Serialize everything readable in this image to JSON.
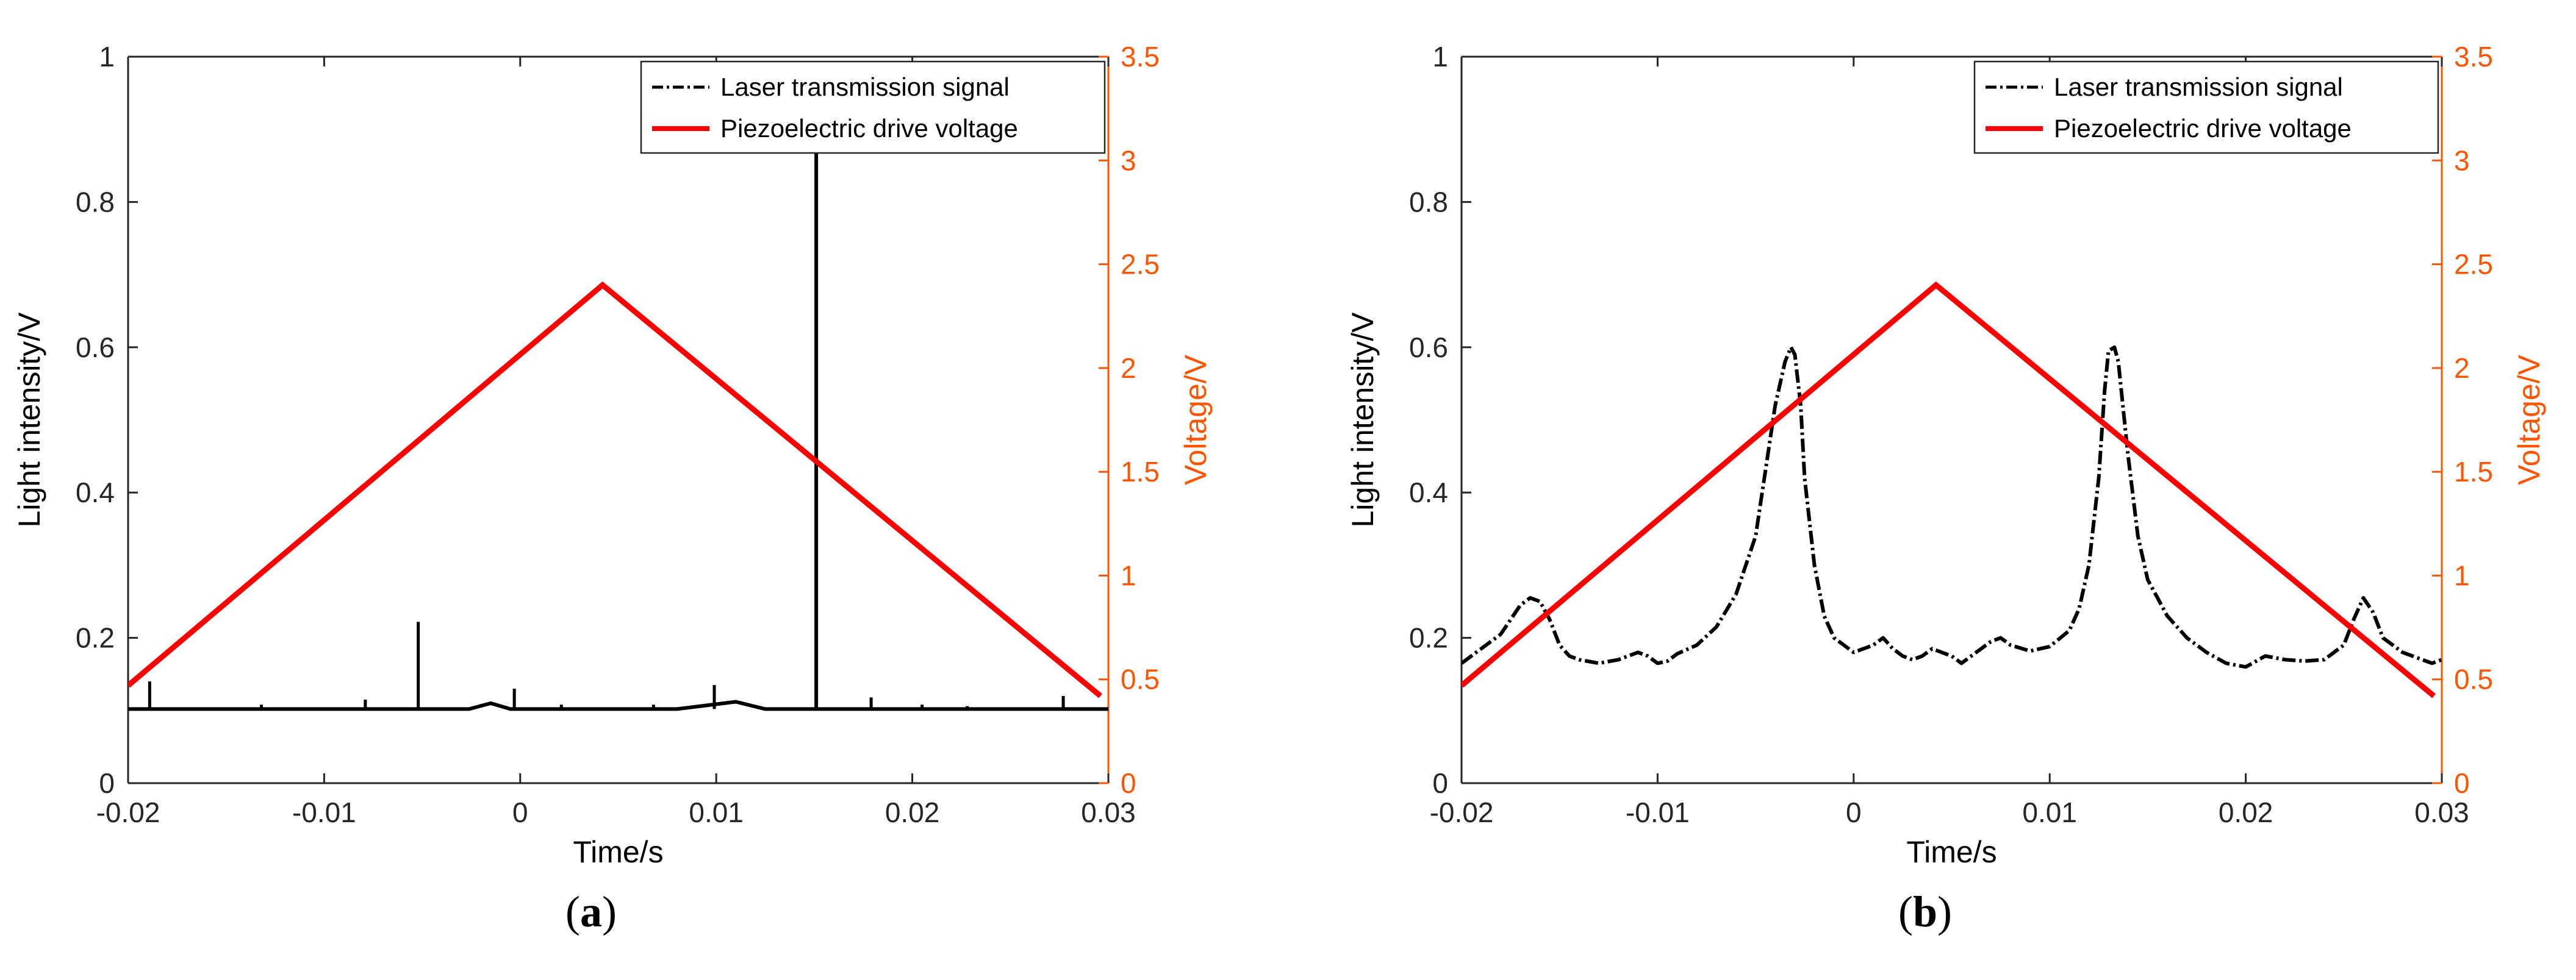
{
  "chart_data": [
    {
      "type": "line",
      "panel_label": "a",
      "xlabel": "Time/s",
      "ylabel": "Light intensity/V",
      "ylabel_right": "Voltage/V",
      "xlim": [
        -0.02,
        0.03
      ],
      "ylim": [
        0,
        1
      ],
      "ylim_right": [
        0,
        3.5
      ],
      "xticks": [
        "-0.02",
        "-0.01",
        "0",
        "0.01",
        "0.02",
        "0.03"
      ],
      "yticks": [
        "0",
        "0.2",
        "0.4",
        "0.6",
        "0.8",
        "1"
      ],
      "yticks_right": [
        "0",
        "0.5",
        "1",
        "1.5",
        "2",
        "2.5",
        "3",
        "3.5"
      ],
      "legend_position": "top-right",
      "grid": false,
      "colors": {
        "signal": "#000000",
        "voltage": "#ff0000",
        "right_axis": "#ff5500"
      },
      "series": [
        {
          "name": "Laser transmission signal",
          "axis": "left",
          "style": "dash-dot",
          "baseline": 0.102,
          "x": [
            -0.02,
            -0.0026,
            -0.0015,
            -0.0005,
            0.008,
            0.011,
            0.0125,
            0.03
          ],
          "y": [
            0.102,
            0.102,
            0.11,
            0.102,
            0.102,
            0.112,
            0.102,
            0.102
          ],
          "spikes": [
            {
              "x": -0.0189,
              "y": 0.14
            },
            {
              "x": -0.0132,
              "y": 0.108
            },
            {
              "x": -0.0079,
              "y": 0.115
            },
            {
              "x": -0.0052,
              "y": 0.222
            },
            {
              "x": -0.0003,
              "y": 0.13
            },
            {
              "x": 0.0021,
              "y": 0.108
            },
            {
              "x": 0.0068,
              "y": 0.108
            },
            {
              "x": 0.0099,
              "y": 0.135
            },
            {
              "x": 0.0151,
              "y": 0.97
            },
            {
              "x": 0.0179,
              "y": 0.118
            },
            {
              "x": 0.0205,
              "y": 0.108
            },
            {
              "x": 0.0228,
              "y": 0.106
            },
            {
              "x": 0.0277,
              "y": 0.12
            }
          ]
        },
        {
          "name": "Piezoelectric drive voltage",
          "axis": "right",
          "style": "solid",
          "x": [
            -0.02,
            0.0042,
            0.0296
          ],
          "y": [
            0.47,
            2.4,
            0.42
          ]
        }
      ]
    },
    {
      "type": "line",
      "panel_label": "b",
      "xlabel": "Time/s",
      "ylabel": "Light intensity/V",
      "ylabel_right": "Voltage/V",
      "xlim": [
        -0.02,
        0.03
      ],
      "ylim": [
        0,
        1
      ],
      "ylim_right": [
        0,
        3.5
      ],
      "xticks": [
        "-0.02",
        "-0.01",
        "0",
        "0.01",
        "0.02",
        "0.03"
      ],
      "yticks": [
        "0",
        "0.2",
        "0.4",
        "0.6",
        "0.8",
        "1"
      ],
      "yticks_right": [
        "0",
        "0.5",
        "1",
        "1.5",
        "2",
        "2.5",
        "3",
        "3.5"
      ],
      "legend_position": "top-right",
      "grid": false,
      "colors": {
        "signal": "#000000",
        "voltage": "#ff0000",
        "right_axis": "#ff5500"
      },
      "series": [
        {
          "name": "Laser transmission signal",
          "axis": "left",
          "style": "dash-dot",
          "x": [
            -0.02,
            -0.019,
            -0.018,
            -0.017,
            -0.0165,
            -0.016,
            -0.0155,
            -0.015,
            -0.0145,
            -0.014,
            -0.013,
            -0.012,
            -0.011,
            -0.0105,
            -0.01,
            -0.0095,
            -0.009,
            -0.008,
            -0.007,
            -0.006,
            -0.0055,
            -0.005,
            -0.0045,
            -0.004,
            -0.0035,
            -0.0032,
            -0.003,
            -0.0027,
            -0.0025,
            -0.002,
            -0.0015,
            -0.001,
            0,
            0.001,
            0.0015,
            0.002,
            0.0025,
            0.003,
            0.0035,
            0.004,
            0.0045,
            0.005,
            0.0055,
            0.006,
            0.007,
            0.0075,
            0.008,
            0.009,
            0.01,
            0.011,
            0.0115,
            0.012,
            0.0125,
            0.0128,
            0.013,
            0.0133,
            0.0135,
            0.014,
            0.0145,
            0.015,
            0.016,
            0.0165,
            0.017,
            0.018,
            0.019,
            0.02,
            0.021,
            0.022,
            0.023,
            0.024,
            0.025,
            0.0255,
            0.026,
            0.0265,
            0.027,
            0.028,
            0.029,
            0.0295,
            0.03
          ],
          "y": [
            0.165,
            0.185,
            0.205,
            0.245,
            0.255,
            0.25,
            0.225,
            0.19,
            0.175,
            0.17,
            0.165,
            0.17,
            0.18,
            0.175,
            0.165,
            0.168,
            0.178,
            0.19,
            0.215,
            0.26,
            0.3,
            0.34,
            0.43,
            0.52,
            0.58,
            0.6,
            0.59,
            0.52,
            0.42,
            0.3,
            0.23,
            0.2,
            0.18,
            0.19,
            0.2,
            0.185,
            0.175,
            0.17,
            0.175,
            0.185,
            0.18,
            0.175,
            0.165,
            0.175,
            0.195,
            0.2,
            0.19,
            0.182,
            0.188,
            0.21,
            0.24,
            0.3,
            0.42,
            0.54,
            0.595,
            0.6,
            0.58,
            0.45,
            0.34,
            0.28,
            0.23,
            0.215,
            0.2,
            0.18,
            0.165,
            0.16,
            0.175,
            0.17,
            0.168,
            0.17,
            0.19,
            0.225,
            0.255,
            0.235,
            0.2,
            0.18,
            0.17,
            0.165,
            0.17
          ]
        },
        {
          "name": "Piezoelectric drive voltage",
          "axis": "right",
          "style": "solid",
          "x": [
            -0.02,
            0.0042,
            0.0296
          ],
          "y": [
            0.47,
            2.4,
            0.42
          ]
        }
      ]
    }
  ]
}
